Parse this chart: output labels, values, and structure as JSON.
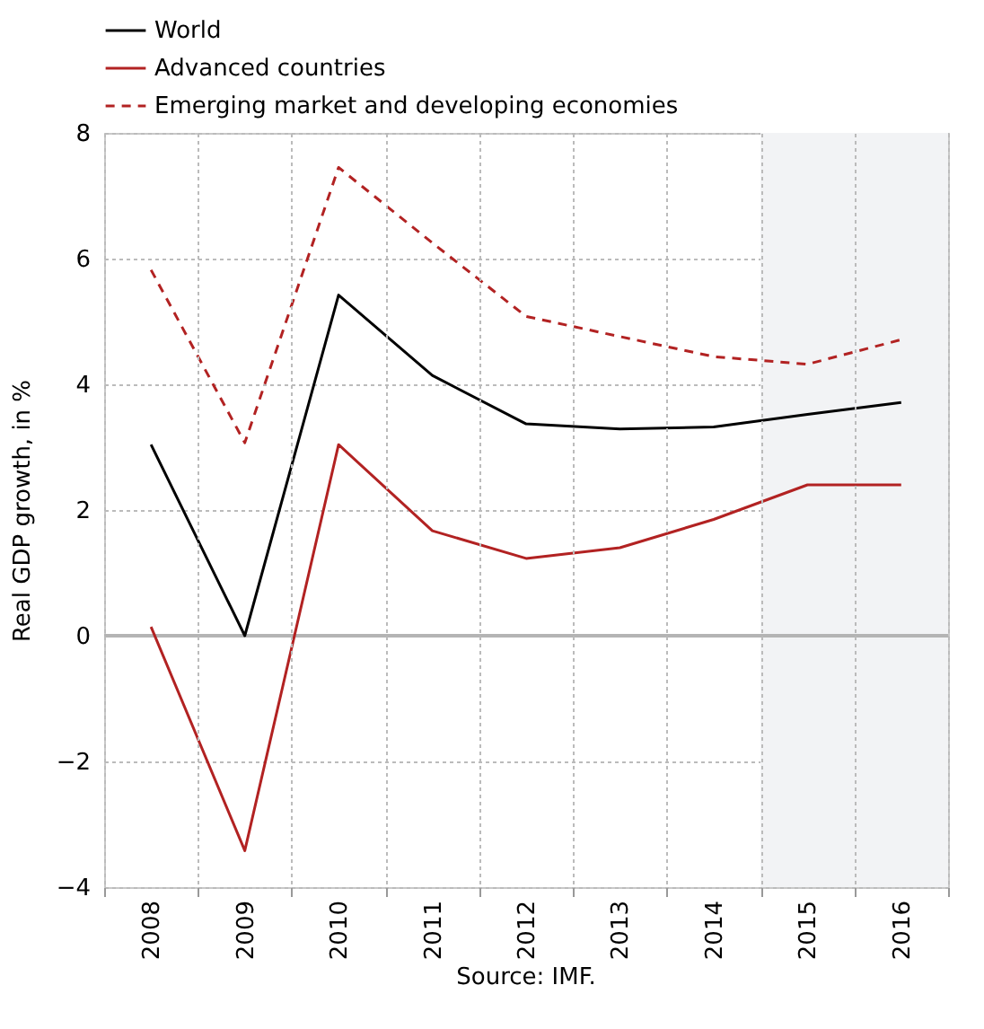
{
  "chart_data": {
    "type": "line",
    "ylabel": "Real GDP growth, in %",
    "categories": [
      "2008",
      "2009",
      "2010",
      "2011",
      "2012",
      "2013",
      "2014",
      "2015",
      "2016"
    ],
    "series": [
      {
        "name": "World",
        "color": "#000000",
        "line_style": "solid",
        "values": [
          3.04,
          0.0,
          5.42,
          4.14,
          3.37,
          3.29,
          3.32,
          3.52,
          3.71
        ]
      },
      {
        "name": "Advanced countries",
        "color": "#b22222",
        "line_style": "solid",
        "values": [
          0.14,
          -3.42,
          3.04,
          1.67,
          1.23,
          1.4,
          1.85,
          2.4,
          2.4
        ]
      },
      {
        "name": "Emerging market and developing economies",
        "color": "#b22222",
        "line_style": "dashed",
        "values": [
          5.82,
          3.07,
          7.45,
          6.25,
          5.08,
          4.76,
          4.44,
          4.32,
          4.71
        ]
      }
    ],
    "ylim": [
      -4,
      8
    ],
    "yticks": [
      -4,
      -2,
      0,
      2,
      4,
      6,
      8
    ],
    "grid": true,
    "legend": "top left",
    "ref_lines": [
      {
        "axis": "y",
        "value": 0,
        "color": "#b4b4b4"
      }
    ],
    "bands": [
      {
        "axis": "x",
        "from": "2015",
        "to": "2016",
        "color": "#f2f3f5"
      }
    ],
    "annotations": [
      "Source: IMF."
    ]
  }
}
